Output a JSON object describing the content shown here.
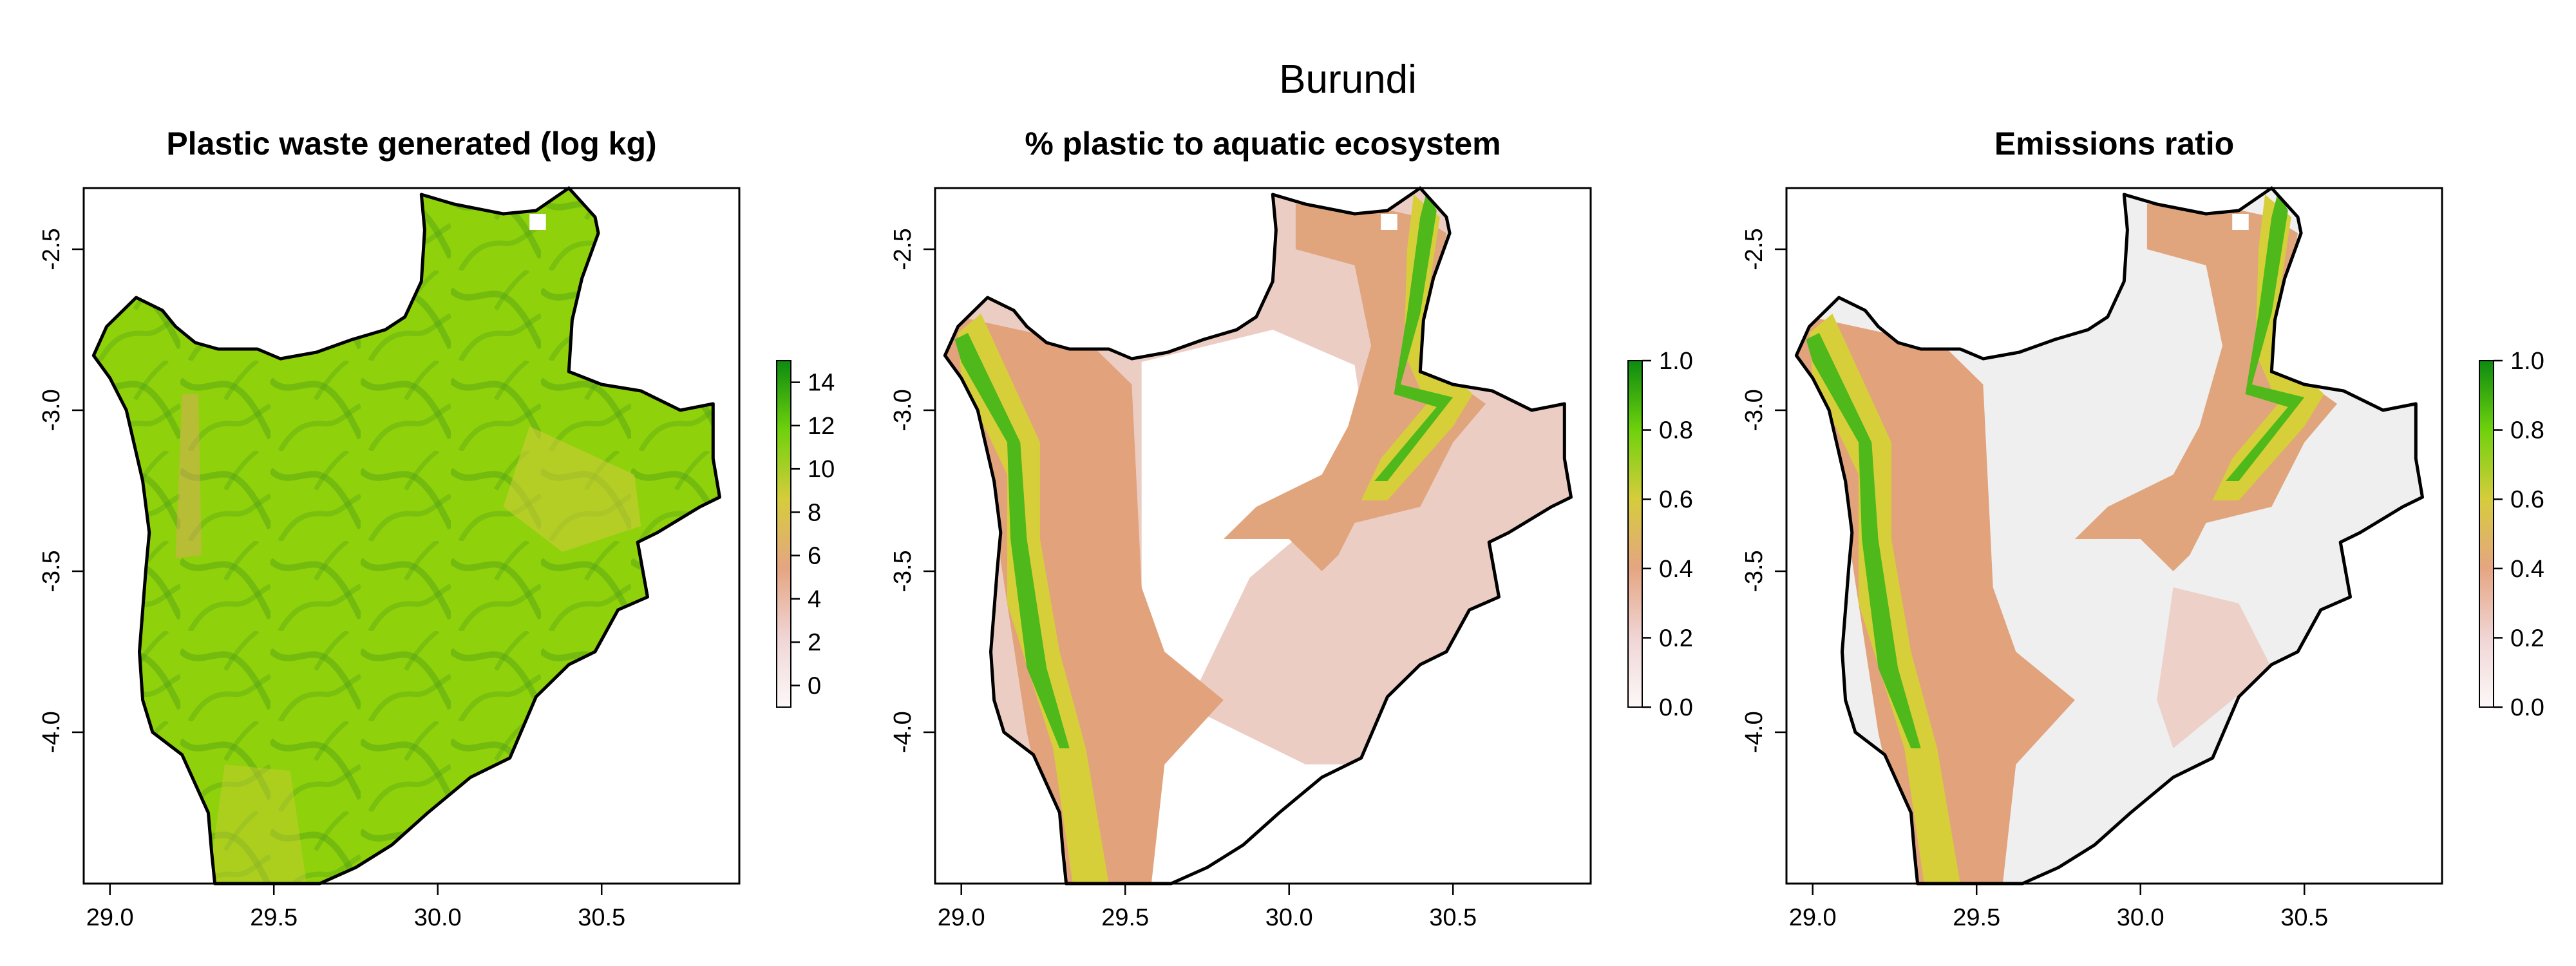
{
  "figure": {
    "title": "Burundi"
  },
  "map_data": {
    "extent": {
      "lon": [
        28.92,
        30.92
      ],
      "lat": [
        -4.47,
        -2.31
      ]
    },
    "x_ticks": [
      {
        "value": 29.0,
        "label": "29.0"
      },
      {
        "value": 29.5,
        "label": "29.5"
      },
      {
        "value": 30.0,
        "label": "30.0"
      },
      {
        "value": 30.5,
        "label": "30.5"
      }
    ],
    "y_ticks": [
      {
        "value": -2.5,
        "label": "-2.5"
      },
      {
        "value": -3.0,
        "label": "-3.0"
      },
      {
        "value": -3.5,
        "label": "-3.5"
      },
      {
        "value": -4.0,
        "label": "-4.0"
      }
    ],
    "border": [
      [
        29.32,
        -4.47
      ],
      [
        29.31,
        -4.37
      ],
      [
        29.3,
        -4.25
      ],
      [
        29.22,
        -4.07
      ],
      [
        29.13,
        -4.0
      ],
      [
        29.1,
        -3.9
      ],
      [
        29.09,
        -3.75
      ],
      [
        29.1,
        -3.62
      ],
      [
        29.11,
        -3.49
      ],
      [
        29.12,
        -3.38
      ],
      [
        29.1,
        -3.22
      ],
      [
        29.05,
        -3.0
      ],
      [
        29.0,
        -2.9
      ],
      [
        28.95,
        -2.83
      ],
      [
        28.99,
        -2.74
      ],
      [
        29.08,
        -2.65
      ],
      [
        29.16,
        -2.69
      ],
      [
        29.2,
        -2.74
      ],
      [
        29.26,
        -2.79
      ],
      [
        29.33,
        -2.81
      ],
      [
        29.45,
        -2.81
      ],
      [
        29.52,
        -2.84
      ],
      [
        29.63,
        -2.82
      ],
      [
        29.74,
        -2.78
      ],
      [
        29.84,
        -2.75
      ],
      [
        29.9,
        -2.71
      ],
      [
        29.95,
        -2.6
      ],
      [
        29.96,
        -2.44
      ],
      [
        29.95,
        -2.33
      ],
      [
        30.05,
        -2.36
      ],
      [
        30.2,
        -2.39
      ],
      [
        30.3,
        -2.38
      ],
      [
        30.4,
        -2.31
      ],
      [
        30.48,
        -2.4
      ],
      [
        30.49,
        -2.45
      ],
      [
        30.44,
        -2.59
      ],
      [
        30.41,
        -2.72
      ],
      [
        30.4,
        -2.88
      ],
      [
        30.5,
        -2.92
      ],
      [
        30.62,
        -2.94
      ],
      [
        30.74,
        -3.0
      ],
      [
        30.84,
        -2.98
      ],
      [
        30.84,
        -3.15
      ],
      [
        30.86,
        -3.27
      ],
      [
        30.8,
        -3.3
      ],
      [
        30.67,
        -3.38
      ],
      [
        30.61,
        -3.41
      ],
      [
        30.64,
        -3.58
      ],
      [
        30.55,
        -3.62
      ],
      [
        30.48,
        -3.75
      ],
      [
        30.4,
        -3.79
      ],
      [
        30.3,
        -3.89
      ],
      [
        30.22,
        -4.08
      ],
      [
        30.1,
        -4.14
      ],
      [
        29.97,
        -4.25
      ],
      [
        29.86,
        -4.35
      ],
      [
        29.75,
        -4.42
      ],
      [
        29.64,
        -4.47
      ],
      [
        29.32,
        -4.47
      ]
    ],
    "panels": [
      {
        "title": "Plastic waste generated (log kg)",
        "fill_mode": "full",
        "legend": {
          "min": -1,
          "max": 15,
          "ticks": [
            "0",
            "2",
            "4",
            "6",
            "8",
            "10",
            "12",
            "14"
          ],
          "tick_values": [
            0,
            2,
            4,
            6,
            8,
            10,
            12,
            14
          ]
        },
        "colors": {
          "base": "#8fd10a",
          "accent": "#4fa51e",
          "low": "#e9a46a"
        }
      },
      {
        "title": "% plastic to aquatic ecosystem",
        "fill_mode": "aquatic",
        "legend": {
          "min": 0,
          "max": 1,
          "ticks": [
            "0.0",
            "0.2",
            "0.4",
            "0.6",
            "0.8",
            "1.0"
          ],
          "tick_values": [
            0,
            0.2,
            0.4,
            0.6,
            0.8,
            1.0
          ]
        },
        "colors": {
          "west": "#e1a27c",
          "east": "#e0a57c",
          "high": "#4fb81a",
          "mid": "#d7cf3a",
          "pale": "#eccdc4"
        }
      },
      {
        "title": "Emissions ratio",
        "fill_mode": "emissions",
        "legend": {
          "min": 0,
          "max": 1,
          "ticks": [
            "0.0",
            "0.2",
            "0.4",
            "0.6",
            "0.8",
            "1.0"
          ],
          "tick_values": [
            0,
            0.2,
            0.4,
            0.6,
            0.8,
            1.0
          ]
        },
        "colors": {
          "west": "#e1a27c",
          "east": "#e0a57c",
          "high": "#4fb81a",
          "mid": "#d7cf3a",
          "pale": "#efefef"
        }
      }
    ],
    "legend_gradient": [
      "#fdf8f8",
      "#f0d5d5",
      "#e5a582",
      "#d6cc3c",
      "#6fd10d",
      "#0c8b10"
    ]
  }
}
